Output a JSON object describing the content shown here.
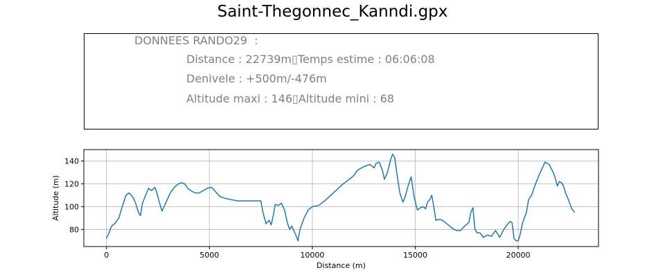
{
  "figure_title": "Saint-Thegonnec_Kanndi.gpx",
  "info_panel": {
    "heading": "DONNEES RANDO29  :",
    "line1": "Distance : 22739m▯Temps estime : 06:06:08",
    "line2": "Denivele : +500m/-476m",
    "line3": "Altitude maxi : 146▯Altitude mini : 68",
    "text_color": "#808080"
  },
  "chart_data": {
    "type": "line",
    "xlabel": "Distance (m)",
    "ylabel": "Altitude (m)",
    "xlim": [
      -1100,
      23900
    ],
    "ylim": [
      65,
      150
    ],
    "xticks": [
      0,
      5000,
      10000,
      15000,
      20000
    ],
    "yticks": [
      80,
      100,
      120,
      140
    ],
    "grid": true,
    "series": [
      {
        "color": "#1f77b4",
        "x": [
          0,
          100,
          250,
          400,
          600,
          800,
          950,
          1100,
          1250,
          1400,
          1550,
          1650,
          1750,
          1900,
          2050,
          2200,
          2350,
          2450,
          2550,
          2700,
          2900,
          3100,
          3300,
          3500,
          3650,
          3800,
          3950,
          4100,
          4300,
          4500,
          4700,
          4900,
          5100,
          5250,
          5500,
          5800,
          6100,
          6400,
          6700,
          7000,
          7300,
          7500,
          7600,
          7750,
          7900,
          8000,
          8100,
          8200,
          8350,
          8500,
          8650,
          8800,
          8900,
          9000,
          9100,
          9200,
          9300,
          9400,
          9600,
          9800,
          10000,
          10300,
          10600,
          10900,
          11200,
          11500,
          11800,
          12000,
          12200,
          12500,
          12800,
          13000,
          13100,
          13250,
          13400,
          13500,
          13650,
          13800,
          13900,
          14000,
          14100,
          14250,
          14400,
          14500,
          14650,
          14800,
          14950,
          15100,
          15250,
          15400,
          15500,
          15600,
          15700,
          15800,
          15900,
          16000,
          16200,
          16400,
          16600,
          16800,
          17000,
          17200,
          17400,
          17600,
          17700,
          17800,
          17900,
          18000,
          18150,
          18300,
          18500,
          18700,
          18900,
          19100,
          19300,
          19500,
          19600,
          19700,
          19800,
          19900,
          20000,
          20100,
          20200,
          20300,
          20400,
          20500,
          20650,
          20800,
          21000,
          21200,
          21300,
          21500,
          21700,
          21800,
          21900,
          22000,
          22100,
          22200,
          22300,
          22400,
          22500,
          22600,
          22739
        ],
        "y": [
          72,
          76,
          83,
          85,
          90,
          102,
          110,
          112,
          109,
          104,
          95,
          92,
          103,
          110,
          116,
          114,
          117,
          112,
          105,
          96,
          104,
          112,
          117,
          120,
          121,
          120,
          116,
          114,
          112,
          112,
          114,
          116,
          117,
          114,
          109,
          107,
          106,
          105,
          105,
          105,
          105,
          105,
          95,
          85,
          88,
          84,
          92,
          102,
          101,
          103,
          97,
          85,
          80,
          83,
          79,
          75,
          70,
          80,
          90,
          97,
          100,
          101,
          105,
          110,
          115,
          120,
          124,
          127,
          132,
          135,
          137,
          134,
          138,
          139,
          132,
          124,
          130,
          141,
          146,
          143,
          130,
          112,
          104,
          108,
          118,
          126,
          108,
          97,
          99,
          100,
          98,
          104,
          106,
          110,
          100,
          88,
          89,
          87,
          84,
          81,
          79,
          79,
          83,
          86,
          95,
          99,
          80,
          77,
          77,
          73,
          75,
          74,
          79,
          73,
          80,
          85,
          87,
          86,
          72,
          70,
          70,
          76,
          85,
          90,
          95,
          106,
          110,
          118,
          127,
          135,
          139,
          137,
          130,
          125,
          118,
          122,
          121,
          118,
          112,
          108,
          103,
          98,
          95
        ]
      }
    ]
  }
}
